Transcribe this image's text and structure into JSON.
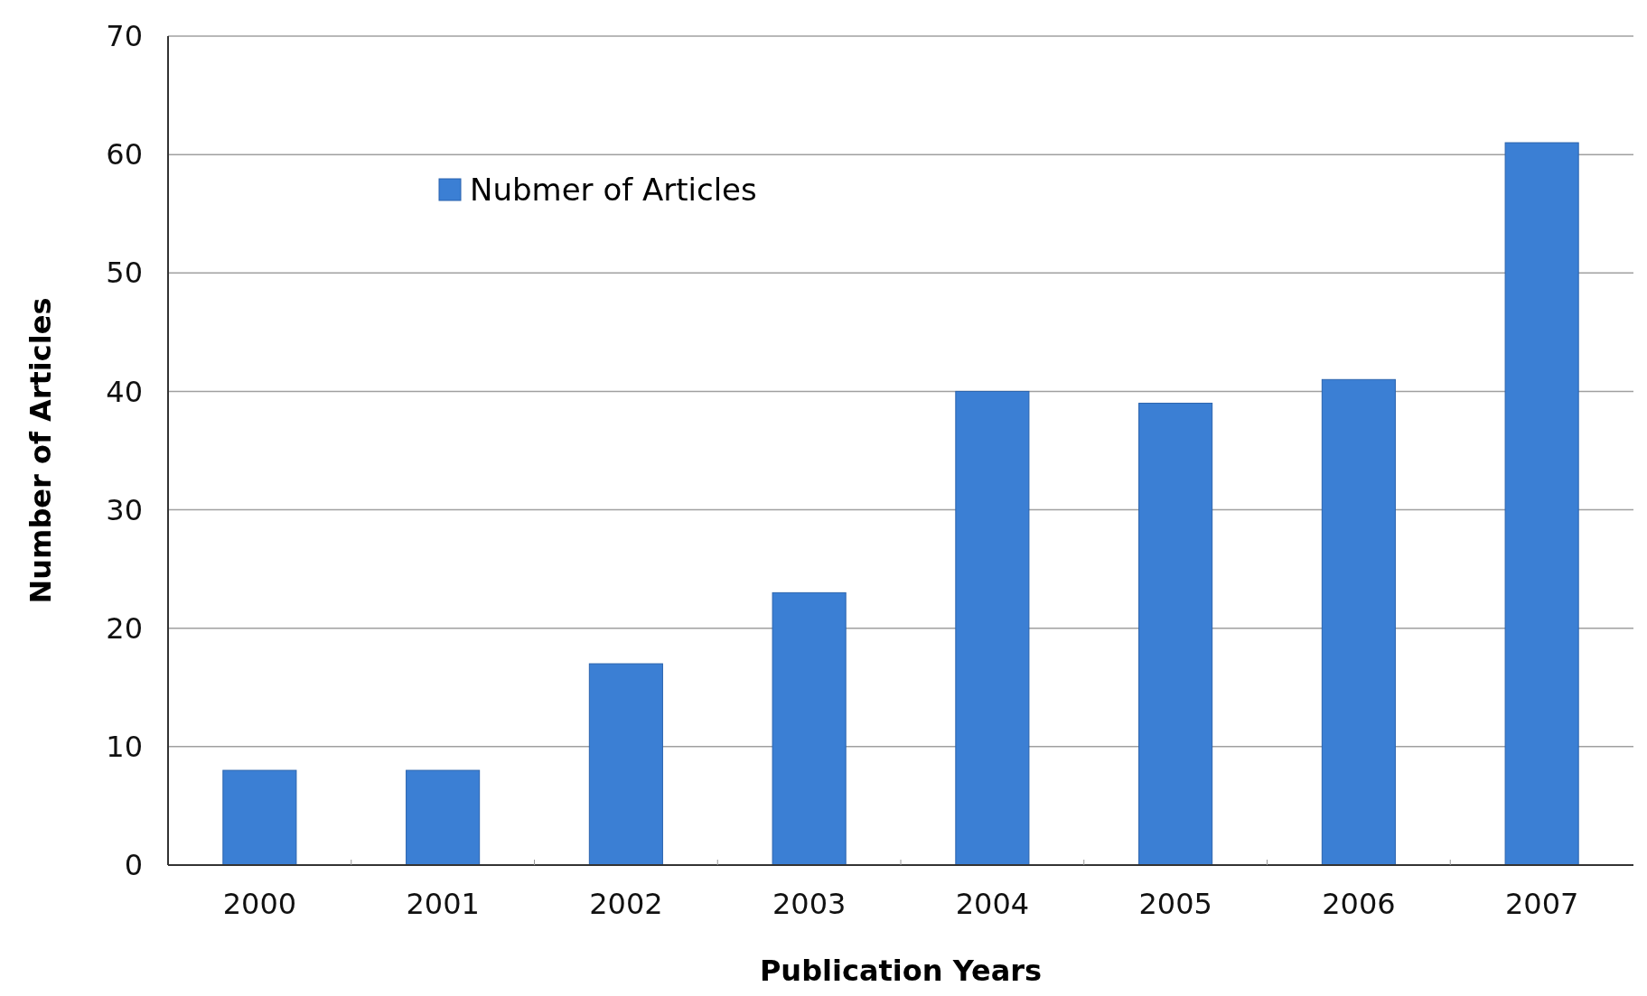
{
  "chart_data": {
    "type": "bar",
    "xlabel": "Publication Years",
    "ylabel": "Number of Articles",
    "categories": [
      "2000",
      "2001",
      "2002",
      "2003",
      "2004",
      "2005",
      "2006",
      "2007"
    ],
    "series": [
      {
        "name": "Nubmer of Articles",
        "color": "#3b7fd4",
        "values": [
          8,
          8,
          17,
          23,
          40,
          39,
          41,
          61
        ]
      }
    ],
    "ylim": [
      0,
      70
    ],
    "yticks": [
      0,
      10,
      20,
      30,
      40,
      50,
      60,
      70
    ],
    "grid": "y",
    "legend": "top left"
  }
}
